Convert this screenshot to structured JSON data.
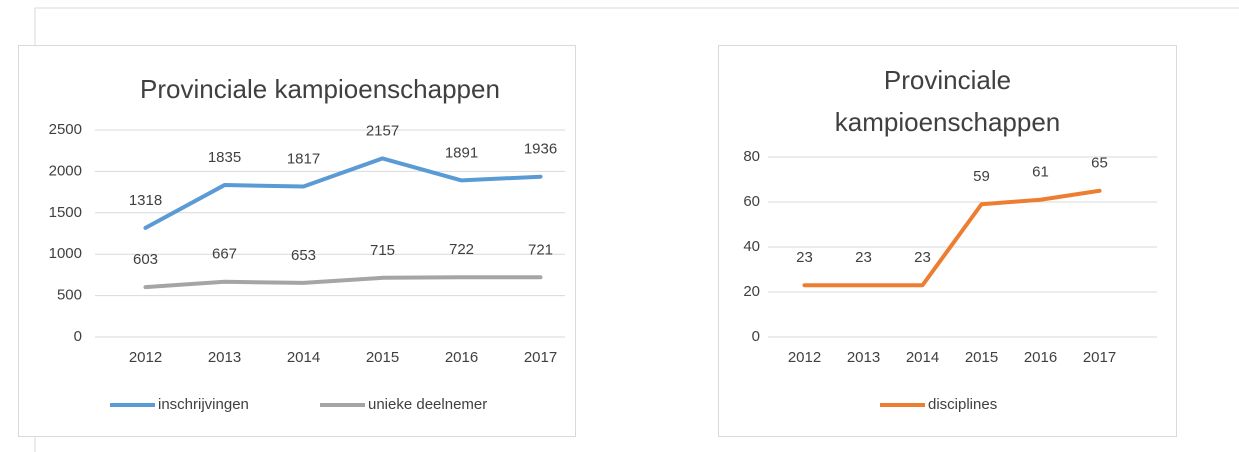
{
  "chart_data": [
    {
      "type": "line",
      "title": "Provinciale kampioenschappen",
      "categories": [
        "2012",
        "2013",
        "2014",
        "2015",
        "2016",
        "2017"
      ],
      "series": [
        {
          "name": "inschrijvingen",
          "color": "#5b9bd5",
          "values": [
            1318,
            1835,
            1817,
            2157,
            1891,
            1936
          ]
        },
        {
          "name": "unieke deelnemer",
          "color": "#a5a5a5",
          "values": [
            603,
            667,
            653,
            715,
            722,
            721
          ]
        }
      ],
      "ylim": [
        0,
        2500
      ],
      "yticks": [
        0,
        500,
        1000,
        1500,
        2000,
        2500
      ],
      "grid": true,
      "legend": "bottom"
    },
    {
      "type": "line",
      "title": "Provinciale kampioenschappen",
      "categories": [
        "2012",
        "2013",
        "2014",
        "2015",
        "2016",
        "2017"
      ],
      "series": [
        {
          "name": "disciplines",
          "color": "#ed7d31",
          "values": [
            23,
            23,
            23,
            59,
            61,
            65
          ]
        }
      ],
      "ylim": [
        0,
        80
      ],
      "yticks": [
        0,
        20,
        40,
        60,
        80
      ],
      "grid": true,
      "legend": "bottom"
    }
  ]
}
